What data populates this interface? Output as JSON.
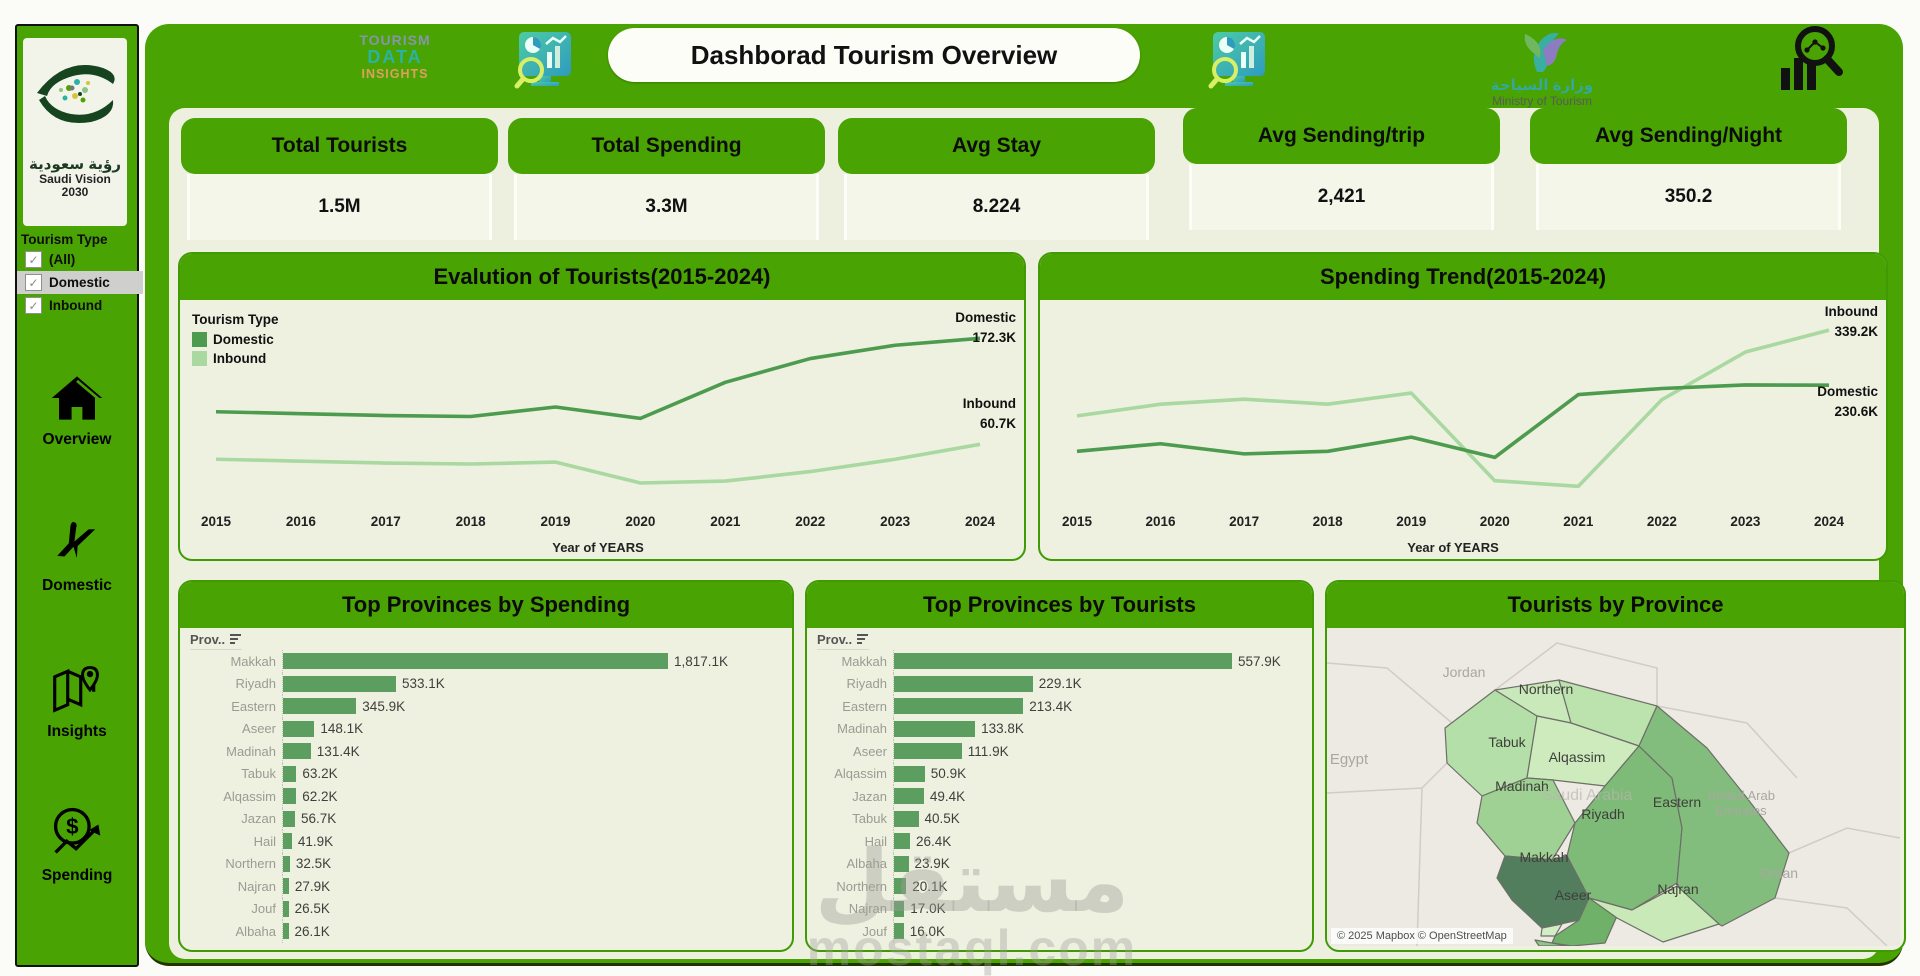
{
  "brand": {
    "logo_line1": "TOURISM",
    "logo_line2": "DATA",
    "logo_line3": "INSIGHTS",
    "title": "Dashborad Tourism Overview",
    "ministry_ar": "وزارة السياحة",
    "ministry_en": "Ministry of Tourism",
    "vision_ar": "رؤية سعودية",
    "vision_en1": "Saudi Vision",
    "vision_en2": "2030"
  },
  "sidebar": {
    "filter_title": "Tourism Type",
    "filters": [
      {
        "label": "(All)",
        "checked": true,
        "highlighted": false
      },
      {
        "label": "Domestic",
        "checked": true,
        "highlighted": true
      },
      {
        "label": "Inbound",
        "checked": true,
        "highlighted": false
      }
    ],
    "nav": [
      {
        "label": "Overview",
        "icon": "home-icon"
      },
      {
        "label": "Domestic",
        "icon": "plane-icon"
      },
      {
        "label": "Insights",
        "icon": "map-pin-icon"
      },
      {
        "label": "Spending",
        "icon": "dollar-trend-icon"
      }
    ]
  },
  "kpis": [
    {
      "title": "Total Tourists",
      "value": "1.5M"
    },
    {
      "title": "Total Spending",
      "value": "3.3M"
    },
    {
      "title": "Avg Stay",
      "value": "8.224"
    },
    {
      "title": "Avg Sending/trip",
      "value": "2,421"
    },
    {
      "title": "Avg Sending/Night",
      "value": "350.2"
    }
  ],
  "watermark": {
    "ar": "مستقل",
    "en": "mostaql.com"
  },
  "chart_data": [
    {
      "id": "tourists_trend",
      "type": "line",
      "title": "Evalution of Tourists(2015-2024)",
      "legend_title": "Tourism Type",
      "x": [
        "2015",
        "2016",
        "2017",
        "2018",
        "2019",
        "2020",
        "2021",
        "2022",
        "2023",
        "2024"
      ],
      "xlabel": "Year of YEARS",
      "unit": "K",
      "ylim": [
        0,
        200
      ],
      "legend_position": "top-left",
      "grid": false,
      "series": [
        {
          "name": "Domestic",
          "color": "#4c9b4e",
          "values": [
            95,
            93,
            91,
            90,
            100,
            88,
            126,
            151,
            165,
            172.3
          ],
          "end_value": "172.3K"
        },
        {
          "name": "Inbound",
          "color": "#a9d8a1",
          "values": [
            45,
            43,
            41,
            40,
            42,
            20,
            22,
            32,
            45,
            60.7
          ],
          "end_value": "60.7K"
        }
      ]
    },
    {
      "id": "spending_trend",
      "type": "line",
      "title": "Spending Trend(2015-2024)",
      "x": [
        "2015",
        "2016",
        "2017",
        "2018",
        "2019",
        "2020",
        "2021",
        "2022",
        "2023",
        "2024"
      ],
      "xlabel": "Year of YEARS",
      "unit": "K",
      "ylim": [
        0,
        375
      ],
      "grid": false,
      "series": [
        {
          "name": "Inbound",
          "color": "#a9d8a1",
          "values": [
            170,
            193,
            203,
            193,
            215,
            42,
            31,
            202,
            296,
            339.2
          ],
          "end_value": "339.2K"
        },
        {
          "name": "Domestic",
          "color": "#4c9b4e",
          "values": [
            100,
            115,
            95,
            100,
            128,
            88,
            212,
            224,
            231,
            230.6
          ],
          "end_value": "230.6K"
        }
      ]
    },
    {
      "id": "top_provinces_spending",
      "type": "bar",
      "title": "Top Provinces by Spending",
      "col_header": "Prov..",
      "bar_color": "#5b9e5f",
      "categories": [
        "Makkah",
        "Riyadh",
        "Eastern",
        "Aseer",
        "Madinah",
        "Tabuk",
        "Alqassim",
        "Jazan",
        "Hail",
        "Northern",
        "Najran",
        "Jouf",
        "Albaha"
      ],
      "values": [
        1817.1,
        533.1,
        345.9,
        148.1,
        131.4,
        63.2,
        62.2,
        56.7,
        41.9,
        32.5,
        27.9,
        26.5,
        26.1
      ],
      "value_labels": [
        "1,817.1K",
        "533.1K",
        "345.9K",
        "148.1K",
        "131.4K",
        "63.2K",
        "62.2K",
        "56.7K",
        "41.9K",
        "32.5K",
        "27.9K",
        "26.5K",
        "26.1K"
      ]
    },
    {
      "id": "top_provinces_tourists",
      "type": "bar",
      "title": "Top Provinces by Tourists",
      "col_header": "Prov..",
      "bar_color": "#5b9e5f",
      "categories": [
        "Makkah",
        "Riyadh",
        "Eastern",
        "Madinah",
        "Aseer",
        "Alqassim",
        "Jazan",
        "Tabuk",
        "Hail",
        "Albaha",
        "Northern",
        "Najran",
        "Jouf"
      ],
      "values": [
        557.9,
        229.1,
        213.4,
        133.8,
        111.9,
        50.9,
        49.4,
        40.5,
        26.4,
        23.9,
        20.1,
        17.0,
        16.0
      ],
      "value_labels": [
        "557.9K",
        "229.1K",
        "213.4K",
        "133.8K",
        "111.9K",
        "50.9K",
        "49.4K",
        "40.5K",
        "26.4K",
        "23.9K",
        "20.1K",
        "17.0K",
        "16.0K"
      ]
    },
    {
      "id": "tourists_by_province_map",
      "type": "choropleth",
      "title": "Tourists by Province",
      "attribution": "© 2025 Mapbox © OpenStreetMap",
      "regions": [
        {
          "name": "Makkah",
          "fill": "#527e5e",
          "labeled": true
        },
        {
          "name": "Riyadh",
          "fill": "#7eba78",
          "labeled": true
        },
        {
          "name": "Eastern",
          "fill": "#83bd7d",
          "labeled": true
        },
        {
          "name": "Aseer",
          "fill": "#6fb169",
          "labeled": true
        },
        {
          "name": "Madinah",
          "fill": "#9ed193",
          "labeled": true
        },
        {
          "name": "Jazan",
          "fill": "#8cc584",
          "labeled": false
        },
        {
          "name": "Tabuk",
          "fill": "#b5dfa8",
          "labeled": true
        },
        {
          "name": "Northern",
          "fill": "#bce2ae",
          "labeled": true
        },
        {
          "name": "Alqassim",
          "fill": "#cdebbd",
          "labeled": true
        },
        {
          "name": "Jouf",
          "fill": "#c9e9ba",
          "labeled": false
        },
        {
          "name": "Najran",
          "fill": "#c9e9b8",
          "labeled": true
        },
        {
          "name": "Albaha",
          "fill": "#d2eec4",
          "labeled": false
        }
      ],
      "context_labels": [
        "Jordan",
        "Egypt",
        "Saudi Arabia",
        "United Arab Emirates",
        "Oman"
      ]
    }
  ]
}
